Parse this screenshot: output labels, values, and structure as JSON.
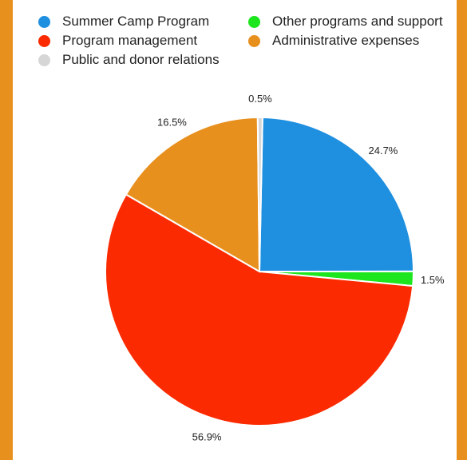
{
  "chart_data": {
    "type": "pie",
    "title": "",
    "legend_placement": "top",
    "categories": [
      "Summer Camp Program",
      "Other programs and support",
      "Program management",
      "Administrative expenses",
      "Public and donor relations"
    ],
    "values": [
      24.7,
      1.5,
      56.9,
      16.5,
      0.5
    ],
    "labels": [
      "24.7%",
      "1.5%",
      "56.9%",
      "16.5%",
      "0.5%"
    ],
    "colors": [
      "#1f8fe0",
      "#1ee61e",
      "#fb2a00",
      "#e8901e",
      "#d6d6d6"
    ]
  }
}
